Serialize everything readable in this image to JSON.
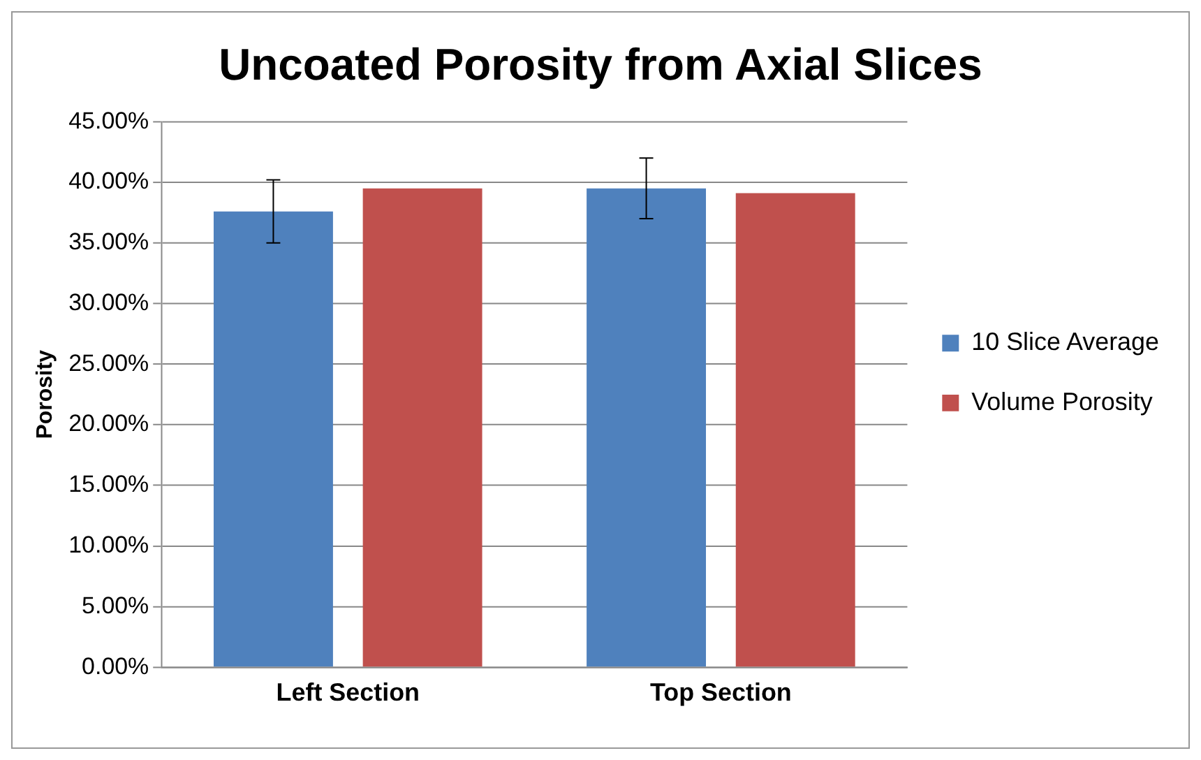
{
  "chart_data": {
    "type": "bar",
    "title": "Uncoated Porosity from Axial Slices",
    "ylabel": "Porosity",
    "categories": [
      "Left Section",
      "Top Section"
    ],
    "series": [
      {
        "name": "10 Slice Average",
        "color": "#4f81bd",
        "values": [
          37.6,
          39.5
        ],
        "errors": [
          2.6,
          2.5
        ]
      },
      {
        "name": "Volume Porosity",
        "color": "#c0504d",
        "values": [
          39.5,
          39.1
        ]
      }
    ],
    "ylim": [
      0,
      45
    ],
    "yticks": [
      {
        "value": 0,
        "label": "0.00%"
      },
      {
        "value": 5,
        "label": "5.00%"
      },
      {
        "value": 10,
        "label": "10.00%"
      },
      {
        "value": 15,
        "label": "15.00%"
      },
      {
        "value": 20,
        "label": "20.00%"
      },
      {
        "value": 25,
        "label": "25.00%"
      },
      {
        "value": 30,
        "label": "30.00%"
      },
      {
        "value": 35,
        "label": "35.00%"
      },
      {
        "value": 40,
        "label": "40.00%"
      },
      {
        "value": 45,
        "label": "45.00%"
      }
    ],
    "grid": "y",
    "legend": "right"
  }
}
